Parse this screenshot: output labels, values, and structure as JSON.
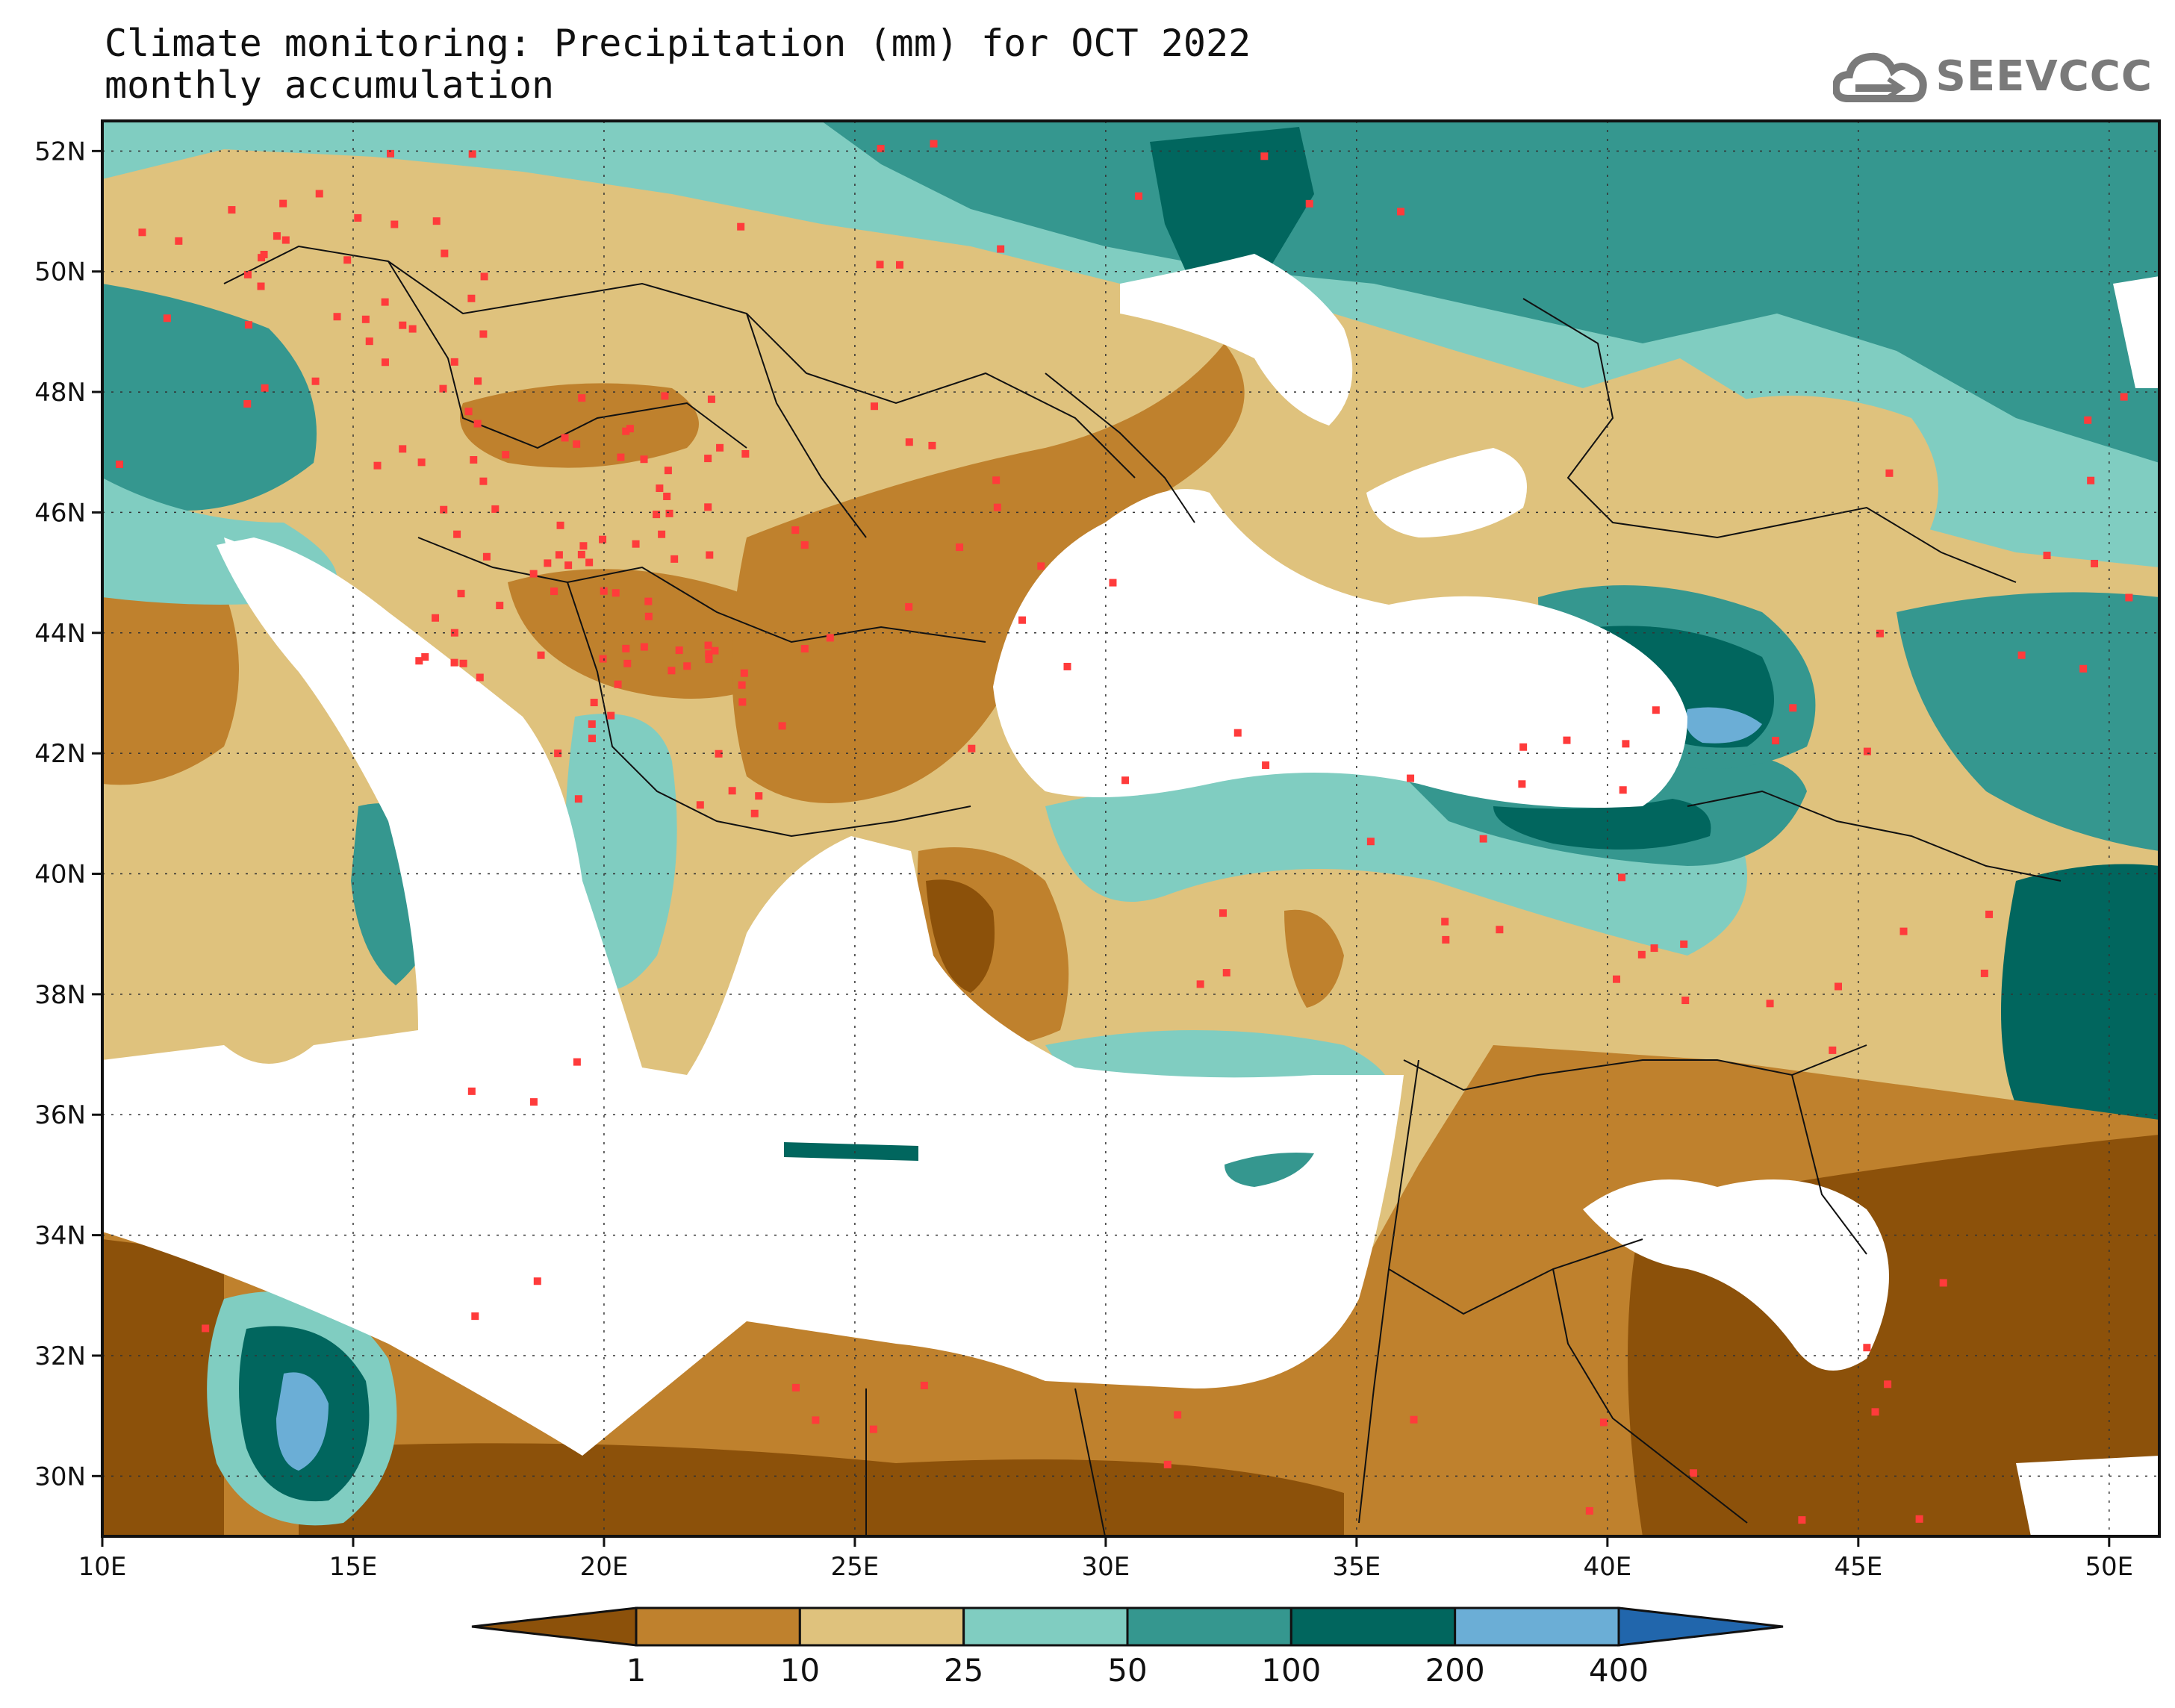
{
  "title": {
    "line1": "Climate monitoring: Precipitation (mm) for OCT 2022",
    "line2": "monthly accumulation"
  },
  "logo": {
    "text": "SEEVCCC",
    "icon": "cloud-icon"
  },
  "map": {
    "lon_range": [
      10,
      51
    ],
    "lat_range": [
      29,
      52.5
    ],
    "lon_ticks": [
      {
        "value": 10,
        "label": "10E"
      },
      {
        "value": 15,
        "label": "15E"
      },
      {
        "value": 20,
        "label": "20E"
      },
      {
        "value": 25,
        "label": "25E"
      },
      {
        "value": 30,
        "label": "30E"
      },
      {
        "value": 35,
        "label": "35E"
      },
      {
        "value": 40,
        "label": "40E"
      },
      {
        "value": 45,
        "label": "45E"
      },
      {
        "value": 50,
        "label": "50E"
      }
    ],
    "lat_ticks": [
      {
        "value": 30,
        "label": "30N"
      },
      {
        "value": 32,
        "label": "32N"
      },
      {
        "value": 34,
        "label": "34N"
      },
      {
        "value": 36,
        "label": "36N"
      },
      {
        "value": 38,
        "label": "38N"
      },
      {
        "value": 40,
        "label": "40N"
      },
      {
        "value": 42,
        "label": "42N"
      },
      {
        "value": 44,
        "label": "44N"
      },
      {
        "value": 46,
        "label": "46N"
      },
      {
        "value": 48,
        "label": "48N"
      },
      {
        "value": 50,
        "label": "50N"
      },
      {
        "value": 52,
        "label": "52N"
      }
    ],
    "grid": true,
    "station_marker_color": "#ff3b3b"
  },
  "colorbar": {
    "labels": [
      "1",
      "10",
      "25",
      "50",
      "100",
      "200",
      "400"
    ],
    "colors": [
      "#8c510a",
      "#bf812d",
      "#dfc27d",
      "#80cdc1",
      "#35978f",
      "#01665e",
      "#6baed6",
      "#2166ac"
    ]
  }
}
